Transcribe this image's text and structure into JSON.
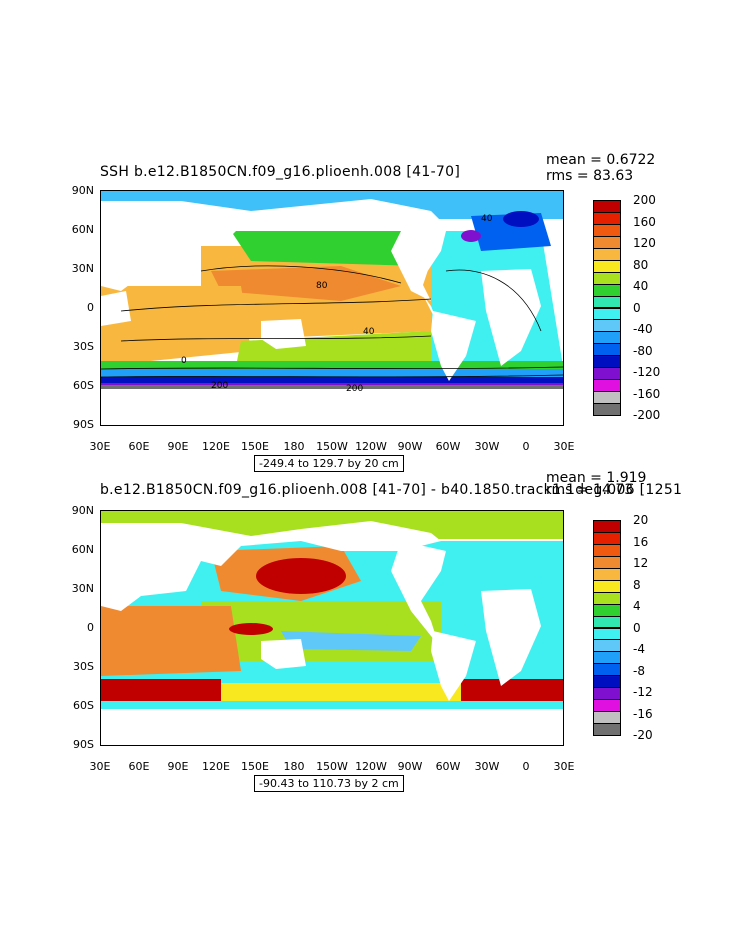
{
  "panels": [
    {
      "title": "SSH  b.e12.B1850CN.f09_g16.plioenh.008  [41-70]",
      "mean": "mean = 0.6722",
      "rms": "rms = 83.63",
      "range": "-249.4 to 129.7 by 20 cm",
      "lat_labels": [
        "90N",
        "60N",
        "30N",
        "0",
        "30S",
        "60S",
        "90S"
      ],
      "lon_labels": [
        "30E",
        "60E",
        "90E",
        "120E",
        "150E",
        "180",
        "150W",
        "120W",
        "90W",
        "60W",
        "30W",
        "0",
        "30E"
      ],
      "colorbar_labels": [
        "200",
        "160",
        "120",
        "80",
        "40",
        "0",
        "-40",
        "-80",
        "-120",
        "-160",
        "-200"
      ],
      "colorbar_colors": [
        "#c00000",
        "#e42000",
        "#f05a10",
        "#f08a30",
        "#f8b840",
        "#f8e820",
        "#a8e020",
        "#30d030",
        "#30e8b0",
        "#40f0f0",
        "#60c8f8",
        "#20a0f8",
        "#0060f0",
        "#0010c0",
        "#8010d0",
        "#e010e0",
        "#c0c0c0",
        "#707070"
      ],
      "contour_labels": [
        "80",
        "40",
        "0",
        "40",
        "80",
        "40",
        "0",
        "40",
        "200",
        "200",
        "40"
      ]
    },
    {
      "title": "b.e12.B1850CN.f09_g16.plioenh.008  [41-70]  -  b40.1850.track1.1deg.006  [1251",
      "mean": "mean = 1.919",
      "rms": "rms = 14.73",
      "range": "-90.43 to 110.73 by 2 cm",
      "lat_labels": [
        "90N",
        "60N",
        "30N",
        "0",
        "30S",
        "60S",
        "90S"
      ],
      "lon_labels": [
        "30E",
        "60E",
        "90E",
        "120E",
        "150E",
        "180",
        "150W",
        "120W",
        "90W",
        "60W",
        "30W",
        "0",
        "30E"
      ],
      "colorbar_labels": [
        "20",
        "16",
        "12",
        "8",
        "4",
        "0",
        "-4",
        "-8",
        "-12",
        "-16",
        "-20"
      ],
      "colorbar_colors": [
        "#c00000",
        "#e42000",
        "#f05a10",
        "#f08a30",
        "#f8b840",
        "#f8e820",
        "#a8e020",
        "#30d030",
        "#30e8b0",
        "#40f0f0",
        "#60c8f8",
        "#20a0f8",
        "#0060f0",
        "#0010c0",
        "#8010d0",
        "#e010e0",
        "#c0c0c0",
        "#707070"
      ]
    }
  ]
}
